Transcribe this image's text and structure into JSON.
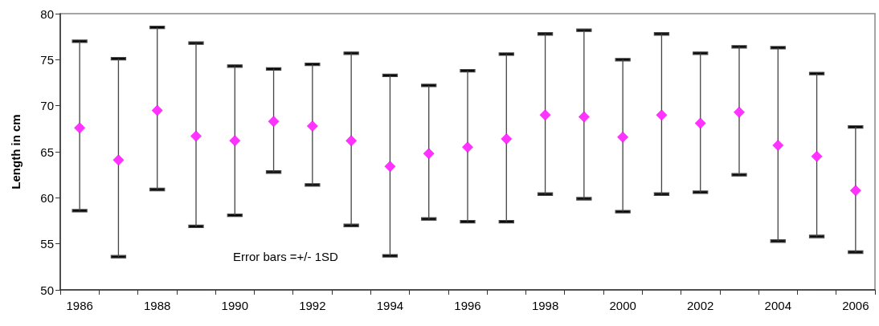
{
  "chart_data": {
    "type": "scatter",
    "ylabel": "Length in cm",
    "categories": [
      "1986",
      null,
      "1988",
      null,
      "1990",
      null,
      "1992",
      null,
      "1994",
      null,
      "1996",
      null,
      "1998",
      null,
      "2000",
      null,
      "2002",
      null,
      "2004",
      null,
      "2006"
    ],
    "series": [
      {
        "color": "#ff00ff",
        "values": [
          67.6,
          64.1,
          69.5,
          66.7,
          66.2,
          68.3,
          67.8,
          66.2,
          63.4,
          64.8,
          65.5,
          66.4,
          69.0,
          68.8,
          66.6,
          69.0,
          68.1,
          69.3,
          65.7,
          64.5,
          60.8
        ],
        "errors": [
          [
            58.6,
            77.0
          ],
          [
            53.6,
            75.1
          ],
          [
            60.9,
            78.5
          ],
          [
            56.9,
            76.8
          ],
          [
            58.1,
            74.3
          ],
          [
            62.8,
            74.0
          ],
          [
            61.4,
            74.5
          ],
          [
            57.0,
            75.7
          ],
          [
            53.7,
            73.3
          ],
          [
            57.7,
            72.2
          ],
          [
            57.4,
            73.8
          ],
          [
            57.4,
            75.6
          ],
          [
            60.4,
            77.8
          ],
          [
            59.9,
            78.2
          ],
          [
            58.5,
            75.0
          ],
          [
            60.4,
            77.8
          ],
          [
            60.6,
            75.7
          ],
          [
            62.5,
            76.4
          ],
          [
            55.3,
            76.3
          ],
          [
            55.8,
            73.5
          ],
          [
            54.1,
            67.7
          ]
        ]
      }
    ],
    "ylim": [
      50,
      80
    ],
    "yticks": [
      50,
      55,
      60,
      65,
      70,
      75,
      80
    ],
    "grid": false,
    "marker": "diamond",
    "annotations": [
      "Error bars =+/- 1SD"
    ]
  }
}
